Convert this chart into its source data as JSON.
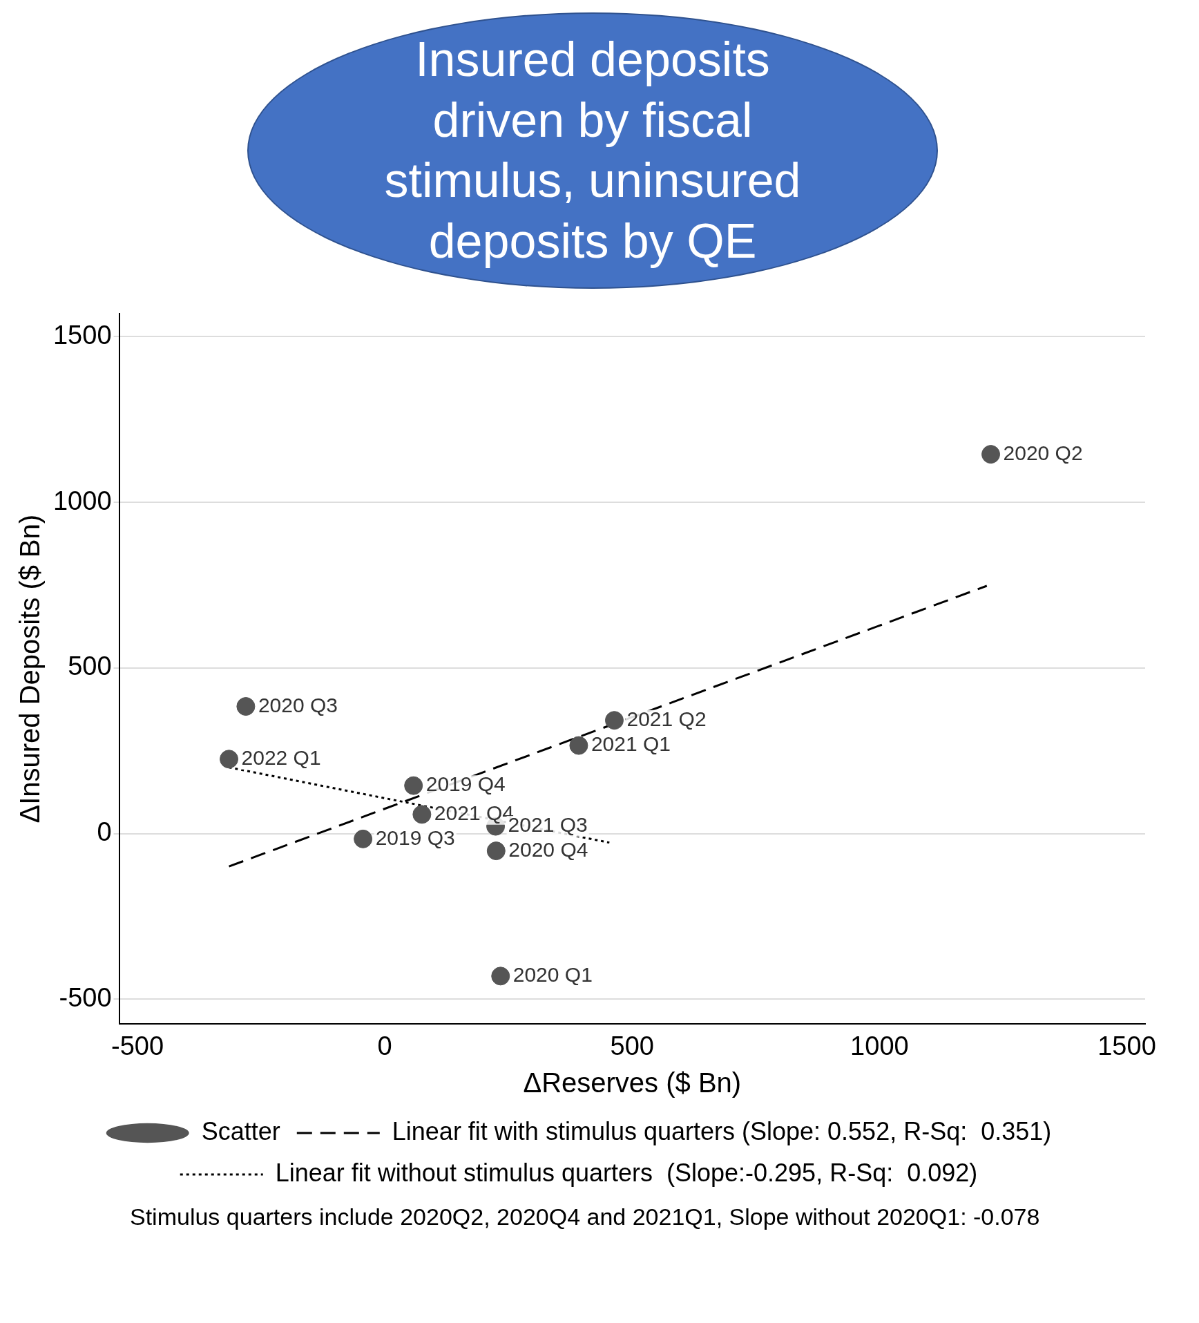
{
  "chart_data": {
    "type": "scatter",
    "xlabel": "ΔReserves ($ Bn)",
    "ylabel": "ΔInsured Deposits ($ Bn)",
    "xlim": [
      -537,
      1537
    ],
    "xticks": [
      -500,
      0,
      500,
      1000,
      1500
    ],
    "ylim": [
      -575,
      1570
    ],
    "yticks": [
      -500,
      0,
      500,
      1000,
      1500
    ],
    "grid": "y",
    "legend": "bottom",
    "series": [
      {
        "type": "scatter",
        "name": "Scatter",
        "color": "#555555",
        "marker": "circle",
        "x": [
          1225,
          -281,
          -315,
          58,
          75,
          -44,
          224,
          225,
          464,
          392,
          234
        ],
        "values": [
          1145,
          384,
          225,
          145,
          58,
          -16,
          22,
          -52,
          342,
          266,
          -430
        ],
        "value_labels": [
          "2020 Q2",
          "2020 Q3",
          "2022 Q1",
          "2019 Q4",
          "2021 Q4",
          "2019 Q3",
          "2021 Q3",
          "2020 Q4",
          "2021 Q2",
          "2021 Q1",
          "2020 Q1"
        ]
      },
      {
        "type": "line",
        "name": "Linear fit with stimulus quarters (Slope: 0.552, R-Sq:  0.351)",
        "color": "#000000",
        "line_style": "dashed",
        "x": [
          -315,
          1217
        ],
        "values": [
          -99,
          748
        ]
      },
      {
        "type": "line",
        "name": "Linear fit without stimulus quarters  (Slope:-0.295, R-Sq:  0.092)",
        "color": "#000000",
        "line_style": "dotted",
        "x": [
          -315,
          454
        ],
        "values": [
          200,
          -27
        ]
      }
    ],
    "annotations": [
      "Insured deposits driven by fiscal stimulus, uninsured deposits by QE",
      "Stimulus quarters include 2020Q2, 2020Q4 and 2021Q1, Slope without 2020Q1: -0.078"
    ]
  }
}
